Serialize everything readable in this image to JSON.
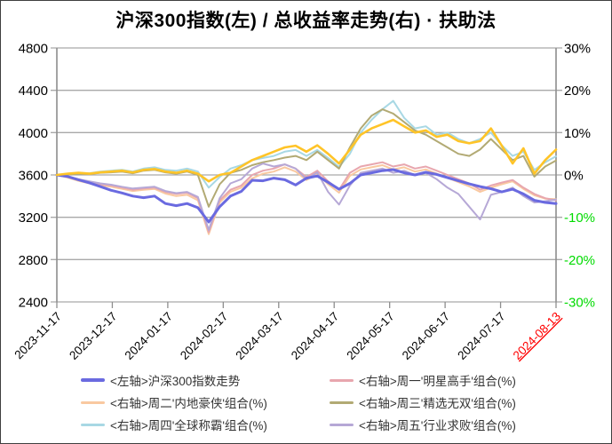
{
  "title": "沪深300指数(左) / 总收益率走势(右) · 扶助法",
  "legend": {
    "items": [
      {
        "label": "<左轴>沪深300指数走势",
        "color": "#6A6AE0"
      },
      {
        "label": "<右轴>周一'明星高手'组合(%)",
        "color": "#E8A6AE"
      },
      {
        "label": "<右轴>周二'内地豪侠'组合(%)",
        "color": "#F9C9A0"
      },
      {
        "label": "<右轴>周三'精选无双'组合(%)",
        "color": "#B2AA74"
      },
      {
        "label": "<右轴>周四'全球称霸'组合(%)",
        "color": "#A8D8E4"
      },
      {
        "label": "<右轴>周五'行业求败'组合(%)",
        "color": "#B6A8D6"
      }
    ]
  },
  "chart_data": {
    "type": "line",
    "title": "沪深300指数(左) / 总收益率走势(右) · 扶助法",
    "grid": true,
    "legend_position": "bottom",
    "x_tick_labels": [
      "2023-11-17",
      "2023-12-17",
      "2024-01-17",
      "2024-02-17",
      "2024-03-17",
      "2024-04-17",
      "2024-05-17",
      "2024-06-17",
      "2024-07-17",
      "2024-08-13"
    ],
    "x_tick_colors": [
      "#000000",
      "#000000",
      "#000000",
      "#000000",
      "#000000",
      "#000000",
      "#000000",
      "#000000",
      "#000000",
      "#FF0000"
    ],
    "left_axis": {
      "ticks": [
        4800,
        4400,
        4000,
        3600,
        3200,
        2800,
        2400
      ],
      "range": [
        2400,
        4800
      ],
      "tick_colors": [
        "#000000",
        "#000000",
        "#000000",
        "#000000",
        "#000000",
        "#000000",
        "#000000"
      ]
    },
    "right_axis": {
      "tick_labels": [
        "30%",
        "20%",
        "10%",
        "0%",
        "-10%",
        "-20%",
        "-30%"
      ],
      "tick_colors": [
        "#000000",
        "#000000",
        "#000000",
        "#000000",
        "#00DB00",
        "#00DB00",
        "#00DB00"
      ],
      "range": [
        -30,
        30
      ]
    },
    "series": [
      {
        "name": "<右轴>周四'全球称霸'组合(%)",
        "axis": "right",
        "color": "#A8D8E4",
        "width": 2,
        "legend_visible": true,
        "values": [
          0,
          0.2,
          0.5,
          0.4,
          0.8,
          1.0,
          1.2,
          0.8,
          1.5,
          1.8,
          1.2,
          1.0,
          1.5,
          0.8,
          -3.0,
          -0.5,
          1.5,
          2.3,
          3.5,
          4.0,
          4.5,
          5.5,
          5.9,
          4.5,
          5.9,
          4.0,
          1.9,
          5.0,
          10.0,
          13.0,
          15.5,
          17.5,
          13.5,
          11.0,
          11.5,
          9.5,
          10.0,
          8.5,
          7.5,
          8.5,
          10.0,
          7.0,
          4.5,
          5.5,
          1.2,
          3.0,
          4.4
        ]
      },
      {
        "name": "<右轴>周三'精选无双'组合(%)",
        "axis": "right",
        "color": "#B2AA74",
        "width": 2,
        "legend_visible": true,
        "values": [
          0,
          0.1,
          0.3,
          0.2,
          0.5,
          0.6,
          0.8,
          0.4,
          1.0,
          1.2,
          0.6,
          0.3,
          0.8,
          0.0,
          -7.5,
          -2.2,
          0.5,
          1.2,
          2.3,
          3.0,
          3.5,
          4.1,
          4.5,
          3.5,
          5.5,
          3.5,
          1.5,
          6.5,
          11.0,
          14.0,
          15.5,
          14.5,
          12.5,
          10.5,
          9.5,
          8.0,
          6.5,
          5.0,
          4.5,
          6.0,
          8.5,
          6.0,
          3.5,
          4.5,
          -0.4,
          2.0,
          3.4
        ]
      },
      {
        "name": "<右轴>周二'内地豪侠'组合(%)",
        "axis": "right",
        "color": "#F9C9A0",
        "width": 2,
        "legend_visible": true,
        "values": [
          0,
          -0.6,
          -1.4,
          -2.0,
          -2.5,
          -2.8,
          -3.3,
          -3.8,
          -3.5,
          -3.3,
          -4.4,
          -5.0,
          -4.7,
          -6.0,
          -14.0,
          -6.5,
          -4.0,
          -3.0,
          -0.8,
          0.3,
          0.8,
          1.8,
          0.8,
          -1.2,
          0.3,
          -2.2,
          -4.2,
          -0.2,
          1.3,
          1.8,
          2.3,
          1.3,
          1.8,
          0.8,
          1.3,
          0.3,
          -0.7,
          -1.7,
          -2.7,
          -4.0,
          -3.0,
          -2.2,
          -1.5,
          -3.3,
          -4.8,
          -5.6,
          -5.7
        ]
      },
      {
        "name": "<右轴>周一'明星高手'组合(%)",
        "axis": "right",
        "color": "#E8A6AE",
        "width": 2,
        "legend_visible": true,
        "values": [
          0,
          -0.5,
          -1.2,
          -1.8,
          -2.2,
          -2.5,
          -3.0,
          -3.5,
          -3.2,
          -3.0,
          -4.0,
          -4.5,
          -4.2,
          -5.5,
          -13.5,
          -6.0,
          -3.5,
          -2.5,
          0.0,
          1.0,
          1.5,
          2.5,
          1.5,
          -0.5,
          1.0,
          -1.5,
          -3.5,
          0.5,
          2.0,
          2.5,
          3.0,
          2.0,
          2.5,
          1.5,
          2.0,
          1.0,
          0.0,
          -1.0,
          -2.0,
          -3.5,
          -2.5,
          -1.8,
          -1.2,
          -3.0,
          -4.5,
          -5.5,
          -6.0
        ]
      },
      {
        "name": "<右轴>周五'行业求败'组合(%)",
        "axis": "right",
        "color": "#B6A8D6",
        "width": 2,
        "legend_visible": true,
        "values": [
          0,
          -0.4,
          -1.0,
          -1.5,
          -2.0,
          -2.3,
          -2.8,
          -3.2,
          -3.0,
          -2.8,
          -3.8,
          -4.3,
          -4.0,
          -5.2,
          -13.0,
          -5.5,
          -2.0,
          -1.0,
          1.5,
          2.7,
          2.0,
          2.5,
          1.5,
          -1.0,
          0.6,
          -4.0,
          -7.0,
          -2.5,
          0.5,
          1.0,
          1.5,
          0.5,
          1.0,
          0.0,
          0.5,
          -1.0,
          -3.0,
          -4.5,
          -7.5,
          -10.5,
          -4.7,
          -4.0,
          -3.0,
          -5.0,
          -6.5,
          -6.2,
          -5.8
        ]
      },
      {
        "name": "<左轴>沪深300指数走势",
        "axis": "left",
        "color": "#6A6AE0",
        "width": 3,
        "legend_visible": true,
        "values": [
          3600,
          3585,
          3555,
          3525,
          3490,
          3455,
          3430,
          3400,
          3385,
          3400,
          3330,
          3310,
          3330,
          3290,
          3155,
          3300,
          3400,
          3445,
          3550,
          3545,
          3570,
          3555,
          3505,
          3570,
          3590,
          3530,
          3465,
          3520,
          3600,
          3620,
          3640,
          3650,
          3620,
          3600,
          3625,
          3605,
          3575,
          3545,
          3515,
          3490,
          3470,
          3440,
          3465,
          3420,
          3360,
          3340,
          3330
        ]
      },
      {
        "name": "",
        "axis": "right",
        "color": "#FFC428",
        "width": 2.6,
        "legend_visible": false,
        "values": [
          0,
          0.3,
          0.5,
          0.3,
          0.6,
          0.8,
          1.0,
          0.6,
          1.2,
          1.4,
          0.8,
          0.5,
          1.0,
          0.3,
          -1.5,
          0.0,
          0.5,
          2.0,
          3.5,
          4.5,
          5.5,
          6.5,
          6.9,
          5.5,
          7.0,
          5.0,
          2.7,
          6.0,
          9.5,
          11.0,
          12.0,
          13.0,
          11.5,
          10.0,
          10.5,
          9.0,
          9.5,
          8.0,
          7.5,
          8.0,
          11.0,
          6.9,
          2.7,
          6.3,
          0.3,
          3.5,
          6.0
        ]
      }
    ]
  },
  "colors": {
    "grid": "#A9A9A9",
    "axis": "#8E8E8E",
    "negative_tick_green": "#00DB00",
    "last_date_red": "#FF0000"
  }
}
